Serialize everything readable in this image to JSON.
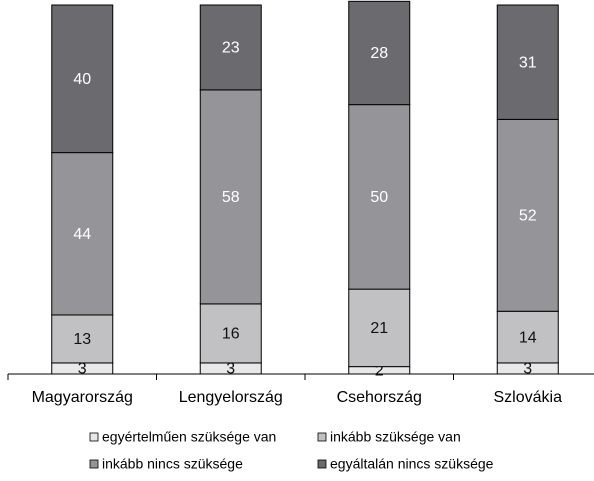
{
  "chart_data": {
    "type": "stacked-bar",
    "categories": [
      "Magyarország",
      "Lengyelország",
      "Csehország",
      "Szlovákia"
    ],
    "series": [
      {
        "name": "egyértelműen szüksége van",
        "color": "#e8e8e8",
        "label_color": "#111111",
        "values": [
          3,
          3,
          2,
          3
        ]
      },
      {
        "name": "inkább szüksége van",
        "color": "#c1c1c3",
        "label_color": "#111111",
        "values": [
          13,
          16,
          21,
          14
        ]
      },
      {
        "name": "inkább nincs szüksége",
        "color": "#959599",
        "label_color": "#ffffff",
        "values": [
          44,
          58,
          50,
          52
        ]
      },
      {
        "name": "egyáltalán nincs szüksége",
        "color": "#6b6b6f",
        "label_color": "#ffffff",
        "values": [
          40,
          23,
          28,
          31
        ]
      }
    ],
    "ylim": [
      0,
      100
    ]
  }
}
